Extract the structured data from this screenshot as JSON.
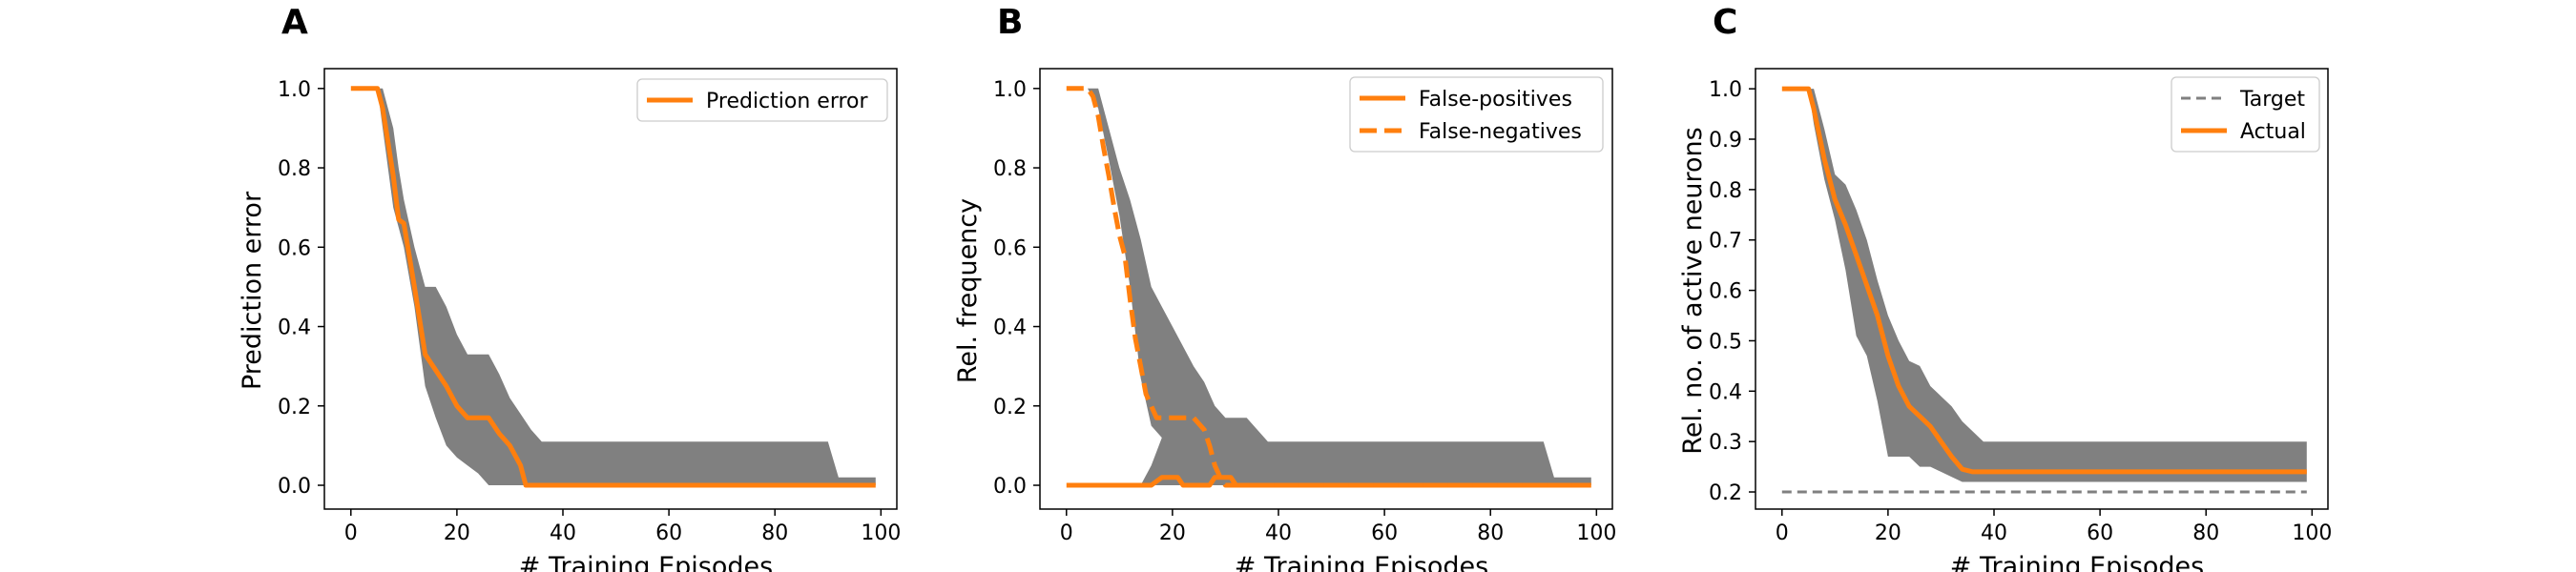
{
  "chart_data": [
    {
      "type": "line",
      "panel_label": "A",
      "xlabel": "# Training Episodes",
      "ylabel": "Prediction error",
      "xlim": [
        -5,
        103
      ],
      "ylim": [
        -0.06,
        1.05
      ],
      "xticks": [
        0,
        20,
        40,
        60,
        80,
        100
      ],
      "yticks": [
        0.0,
        0.2,
        0.4,
        0.6,
        0.8,
        1.0
      ],
      "ytick_labels": [
        "0.0",
        "0.2",
        "0.4",
        "0.6",
        "0.8",
        "1.0"
      ],
      "legend_position": "upper-right",
      "series": [
        {
          "name": "Prediction error",
          "color": "#ff7f0e",
          "style": "solid",
          "x": [
            0,
            5,
            6,
            8,
            9,
            10,
            12,
            14,
            16,
            18,
            20,
            22,
            24,
            26,
            28,
            30,
            32,
            33,
            35,
            40,
            60,
            80,
            99
          ],
          "y": [
            1.0,
            1.0,
            0.95,
            0.78,
            0.67,
            0.66,
            0.5,
            0.33,
            0.29,
            0.25,
            0.2,
            0.17,
            0.17,
            0.17,
            0.13,
            0.1,
            0.05,
            0.0,
            0.0,
            0.0,
            0.0,
            0.0,
            0.0
          ]
        }
      ],
      "bands": [
        {
          "color": "#808080",
          "x": [
            0,
            5,
            6,
            8,
            9,
            10,
            12,
            14,
            16,
            18,
            20,
            22,
            24,
            26,
            28,
            30,
            32,
            34,
            36,
            38,
            40,
            60,
            80,
            90,
            92,
            99
          ],
          "lower": [
            1.0,
            1.0,
            0.9,
            0.7,
            0.65,
            0.6,
            0.45,
            0.25,
            0.17,
            0.1,
            0.07,
            0.05,
            0.03,
            0.0,
            0.0,
            0.0,
            0.0,
            0.0,
            0.0,
            0.0,
            0.0,
            0.0,
            0.0,
            0.0,
            0.0,
            0.0
          ],
          "upper": [
            1.0,
            1.0,
            1.0,
            0.9,
            0.8,
            0.72,
            0.6,
            0.5,
            0.5,
            0.45,
            0.38,
            0.33,
            0.33,
            0.33,
            0.28,
            0.22,
            0.18,
            0.14,
            0.11,
            0.11,
            0.11,
            0.11,
            0.11,
            0.11,
            0.02,
            0.02
          ]
        }
      ]
    },
    {
      "type": "line",
      "panel_label": "B",
      "xlabel": "# Training Episodes",
      "ylabel": "Rel. frequency",
      "xlim": [
        -5,
        103
      ],
      "ylim": [
        -0.06,
        1.05
      ],
      "xticks": [
        0,
        20,
        40,
        60,
        80,
        100
      ],
      "yticks": [
        0.0,
        0.2,
        0.4,
        0.6,
        0.8,
        1.0
      ],
      "ytick_labels": [
        "0.0",
        "0.2",
        "0.4",
        "0.6",
        "0.8",
        "1.0"
      ],
      "legend_position": "upper-right",
      "series": [
        {
          "name": "False-positives",
          "color": "#ff7f0e",
          "style": "solid",
          "x": [
            0,
            16,
            18,
            19,
            20,
            21,
            22,
            23,
            24,
            26,
            27,
            28,
            29,
            30,
            31,
            32,
            99
          ],
          "y": [
            0.0,
            0.0,
            0.02,
            0.02,
            0.02,
            0.02,
            0.0,
            0.0,
            0.0,
            0.0,
            0.0,
            0.02,
            0.02,
            0.02,
            0.02,
            0.0,
            0.0
          ]
        },
        {
          "name": "False-negatives",
          "color": "#ff7f0e",
          "style": "dashed",
          "x": [
            0,
            4,
            5,
            6,
            7,
            8,
            9,
            10,
            11,
            12,
            13,
            14,
            15,
            16,
            17,
            18,
            20,
            22,
            24,
            26,
            27,
            28,
            29,
            30,
            99
          ],
          "y": [
            1.0,
            1.0,
            0.98,
            0.93,
            0.85,
            0.78,
            0.7,
            0.63,
            0.58,
            0.47,
            0.37,
            0.3,
            0.23,
            0.2,
            0.17,
            0.17,
            0.17,
            0.17,
            0.17,
            0.14,
            0.1,
            0.05,
            0.02,
            0.0,
            0.0
          ]
        }
      ],
      "bands": [
        {
          "color": "#808080",
          "x": [
            0,
            4,
            6,
            8,
            10,
            12,
            14,
            16,
            18,
            20,
            22,
            24,
            26,
            28,
            30,
            34,
            36,
            38,
            40,
            60,
            80,
            90,
            92,
            99
          ],
          "lower": [
            1.0,
            1.0,
            0.95,
            0.82,
            0.68,
            0.5,
            0.27,
            0.15,
            0.12,
            0.1,
            0.1,
            0.1,
            0.05,
            0.0,
            0.0,
            0.0,
            0.0,
            0.0,
            0.0,
            0.0,
            0.0,
            0.0,
            0.0,
            0.0
          ],
          "upper": [
            1.0,
            1.0,
            1.0,
            0.9,
            0.8,
            0.72,
            0.62,
            0.5,
            0.45,
            0.4,
            0.35,
            0.3,
            0.26,
            0.2,
            0.17,
            0.17,
            0.14,
            0.11,
            0.11,
            0.11,
            0.11,
            0.11,
            0.02,
            0.02
          ]
        },
        {
          "color": "#808080",
          "x": [
            14,
            16,
            18,
            20,
            22,
            24,
            26,
            28,
            30,
            32,
            34,
            36,
            38
          ],
          "lower": [
            0.0,
            0.0,
            0.0,
            0.0,
            0.0,
            0.0,
            0.0,
            0.0,
            0.0,
            0.0,
            0.0,
            0.0,
            0.0
          ],
          "upper": [
            0.0,
            0.05,
            0.12,
            0.17,
            0.17,
            0.17,
            0.14,
            0.1,
            0.07,
            0.05,
            0.03,
            0.01,
            0.0
          ]
        }
      ]
    },
    {
      "type": "line",
      "panel_label": "C",
      "xlabel": "# Training Episodes",
      "ylabel": "Rel. no. of active neurons",
      "xlim": [
        -5,
        103
      ],
      "ylim": [
        0.166,
        1.04
      ],
      "xticks": [
        0,
        20,
        40,
        60,
        80,
        100
      ],
      "yticks": [
        0.2,
        0.3,
        0.4,
        0.5,
        0.6,
        0.7,
        0.8,
        0.9,
        1.0
      ],
      "ytick_labels": [
        "0.2",
        "0.3",
        "0.4",
        "0.5",
        "0.6",
        "0.7",
        "0.8",
        "0.9",
        "1.0"
      ],
      "legend_position": "upper-right",
      "series": [
        {
          "name": "Target",
          "color": "#808080",
          "style": "dashed",
          "x": [
            0,
            99
          ],
          "y": [
            0.2,
            0.2
          ]
        },
        {
          "name": "Actual",
          "color": "#ff7f0e",
          "style": "solid",
          "x": [
            0,
            5,
            6,
            8,
            10,
            12,
            14,
            16,
            18,
            20,
            22,
            24,
            26,
            28,
            30,
            32,
            34,
            36,
            40,
            60,
            80,
            99
          ],
          "y": [
            1.0,
            1.0,
            0.96,
            0.86,
            0.78,
            0.73,
            0.67,
            0.61,
            0.55,
            0.47,
            0.41,
            0.37,
            0.35,
            0.33,
            0.3,
            0.27,
            0.245,
            0.24,
            0.24,
            0.24,
            0.24,
            0.24
          ]
        }
      ],
      "bands": [
        {
          "color": "#808080",
          "x": [
            0,
            5,
            6,
            8,
            10,
            12,
            14,
            16,
            18,
            20,
            22,
            24,
            26,
            28,
            30,
            32,
            34,
            36,
            38,
            40,
            60,
            80,
            99
          ],
          "lower": [
            1.0,
            1.0,
            0.93,
            0.82,
            0.74,
            0.64,
            0.51,
            0.47,
            0.38,
            0.27,
            0.27,
            0.27,
            0.25,
            0.25,
            0.24,
            0.23,
            0.22,
            0.22,
            0.22,
            0.22,
            0.22,
            0.22,
            0.22
          ],
          "upper": [
            1.0,
            1.0,
            1.0,
            0.92,
            0.83,
            0.81,
            0.76,
            0.7,
            0.62,
            0.55,
            0.5,
            0.46,
            0.45,
            0.41,
            0.39,
            0.37,
            0.34,
            0.32,
            0.3,
            0.3,
            0.3,
            0.3,
            0.3
          ]
        }
      ]
    }
  ]
}
